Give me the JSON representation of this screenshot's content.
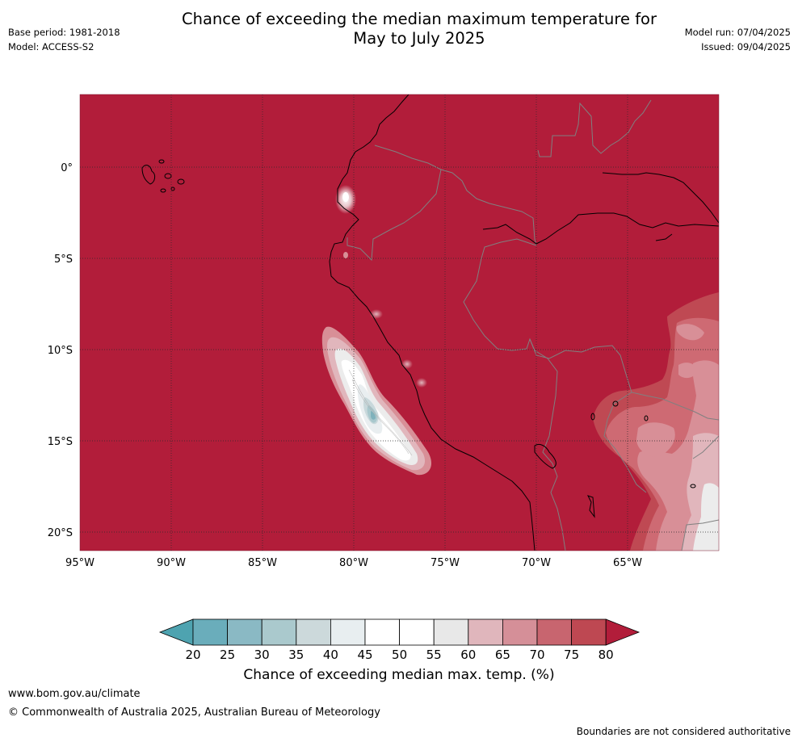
{
  "header": {
    "title_line1": "Chance of exceeding the median maximum temperature for",
    "title_line2": "May to July 2025",
    "base_period": "Base period: 1981-2018",
    "model": "Model: ACCESS-S2",
    "model_run": "Model run: 07/04/2025",
    "issued": "Issued: 09/04/2025"
  },
  "map": {
    "lon_labels": [
      "95°W",
      "90°W",
      "85°W",
      "80°W",
      "75°W",
      "70°W",
      "65°W"
    ],
    "lat_labels": [
      "0°",
      "5°S",
      "10°S",
      "15°S",
      "20°S"
    ],
    "gridlines": "dotted",
    "dominant_category": "80+",
    "colors": {
      "background_fill": "#b21d3a",
      "coastline": "#000000",
      "borders": "#808080"
    }
  },
  "colorbar": {
    "label": "Chance of exceeding median max. temp. (%)",
    "ticks": [
      "20",
      "25",
      "30",
      "35",
      "40",
      "45",
      "50",
      "55",
      "60",
      "65",
      "70",
      "75",
      "80"
    ],
    "colors": [
      "#4ea3b0",
      "#6aadbb",
      "#8ab9c4",
      "#aac9cd",
      "#ccd9db",
      "#e8eef0",
      "#ffffff",
      "#ffffff",
      "#e8e8e8",
      "#e0b6bc",
      "#d58f98",
      "#c8656f",
      "#be4852",
      "#b21d3a"
    ]
  },
  "footer": {
    "url": "www.bom.gov.au/climate",
    "copyright": "© Commonwealth of Australia 2025, Australian Bureau of Meteorology",
    "note": "Boundaries are not considered authoritative"
  }
}
